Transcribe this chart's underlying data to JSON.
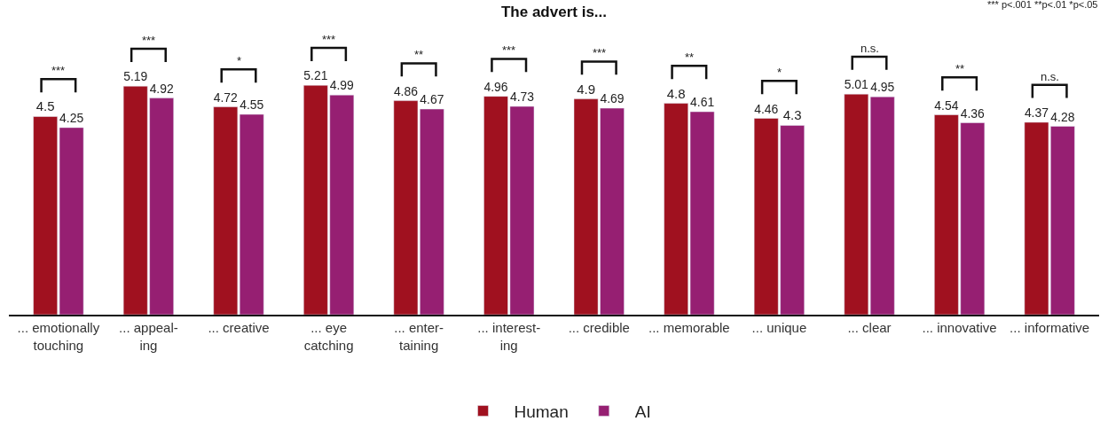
{
  "chart_data": {
    "type": "bar",
    "title": "The advert is...",
    "categories": [
      "... emotionally\ntouching",
      "... appeal-\ning",
      "... creative",
      "... eye\ncatching",
      "... enter-\ntaining",
      "... interest-\ning",
      "... credible",
      "... memorable",
      "... unique",
      "... clear",
      "... innovative",
      "... informative"
    ],
    "series": [
      {
        "name": "Human",
        "color": "#a0111f",
        "values": [
          4.5,
          5.19,
          4.72,
          5.21,
          4.86,
          4.96,
          4.9,
          4.8,
          4.46,
          5.01,
          4.54,
          4.37
        ]
      },
      {
        "name": "AI",
        "color": "#961f72",
        "values": [
          4.25,
          4.92,
          4.55,
          4.99,
          4.67,
          4.73,
          4.69,
          4.61,
          4.3,
          4.95,
          4.36,
          4.28
        ]
      }
    ],
    "data_labels": true,
    "tick_labels": "x",
    "legend": "bottom",
    "annotations": [
      "***",
      "***",
      "*",
      "***",
      "**",
      "***",
      "***",
      "**",
      "*",
      "n.s.",
      "**",
      "n.s.",
      "*** p<.001 **p<.01 *p<.05"
    ]
  }
}
